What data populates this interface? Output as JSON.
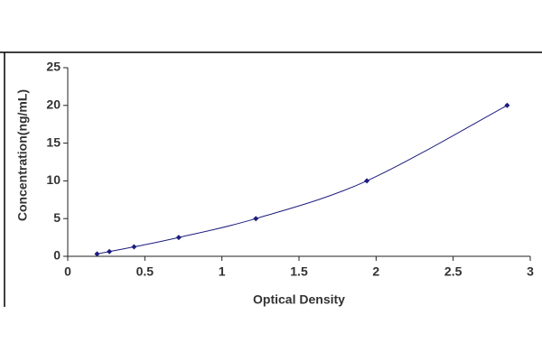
{
  "chart_data": {
    "type": "scatter",
    "x_label": "Optical Density",
    "y_label": "Concentration(ng/mL)",
    "x": [
      0.19,
      0.27,
      0.43,
      0.72,
      1.22,
      1.94,
      2.85
    ],
    "values": [
      0.312,
      0.625,
      1.25,
      2.5,
      5,
      10,
      20
    ],
    "color": "#1c1c80",
    "xlim": [
      0,
      3
    ],
    "xticks": [
      0,
      0.5,
      1,
      1.5,
      2,
      2.5,
      3
    ],
    "ylim": [
      0,
      25
    ],
    "yticks": [
      0,
      5,
      10,
      15,
      20,
      25
    ],
    "grid": false
  }
}
